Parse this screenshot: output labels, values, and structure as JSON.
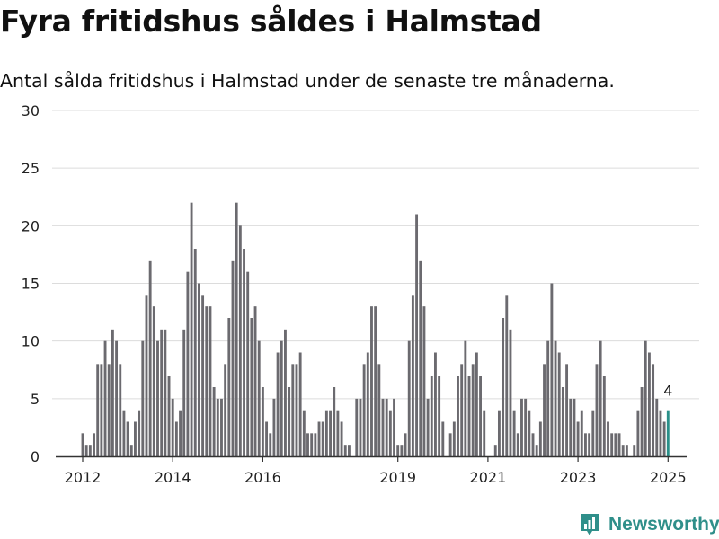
{
  "title": "Fyra fritidshus såldes i Halmstad",
  "subtitle": "Antal sålda fritidshus i Halmstad under de senaste tre månaderna.",
  "brand": {
    "name": "Newsworthy"
  },
  "colors": {
    "bar": "#6b6a6f",
    "highlight": "#2a9089",
    "grid": "#dcdcdc",
    "axis": "#333333",
    "brand": "#2f8f8a"
  },
  "chart_data": {
    "type": "bar",
    "title": "",
    "xlabel": "",
    "ylabel": "",
    "ylim": [
      0,
      30
    ],
    "yticks": [
      0,
      5,
      10,
      15,
      20,
      25,
      30
    ],
    "xticks": [
      {
        "label": "2012",
        "x": 2012.0
      },
      {
        "label": "2014",
        "x": 2014.0
      },
      {
        "label": "2016",
        "x": 2016.0
      },
      {
        "label": "2019",
        "x": 2019.0
      },
      {
        "label": "2021",
        "x": 2021.0
      },
      {
        "label": "2023",
        "x": 2023.0
      },
      {
        "label": "2025",
        "x": 2025.0
      }
    ],
    "grid": true,
    "start": "2012-01",
    "end": "2025-01",
    "values": [
      2,
      1,
      1,
      2,
      8,
      8,
      10,
      8,
      11,
      10,
      8,
      4,
      3,
      1,
      3,
      4,
      10,
      14,
      17,
      13,
      10,
      11,
      11,
      7,
      5,
      3,
      4,
      11,
      16,
      22,
      18,
      15,
      14,
      13,
      13,
      6,
      5,
      5,
      8,
      12,
      17,
      22,
      20,
      18,
      16,
      12,
      13,
      10,
      6,
      3,
      2,
      5,
      9,
      10,
      11,
      6,
      8,
      8,
      9,
      4,
      2,
      2,
      2,
      3,
      3,
      4,
      4,
      6,
      4,
      3,
      1,
      1,
      0,
      5,
      5,
      8,
      9,
      13,
      13,
      8,
      5,
      5,
      4,
      5,
      1,
      1,
      2,
      10,
      14,
      21,
      17,
      13,
      5,
      7,
      9,
      7,
      3,
      0,
      2,
      3,
      7,
      8,
      10,
      7,
      8,
      9,
      7,
      4,
      0,
      0,
      1,
      4,
      12,
      14,
      11,
      4,
      2,
      5,
      5,
      4,
      2,
      1,
      3,
      8,
      10,
      15,
      10,
      9,
      6,
      8,
      5,
      5,
      3,
      4,
      2,
      2,
      4,
      8,
      10,
      7,
      3,
      2,
      2,
      2,
      1,
      1,
      0,
      1,
      4,
      6,
      10,
      9,
      8,
      5,
      4,
      3,
      4
    ],
    "highlight_last": true,
    "last_value_label": "4"
  }
}
